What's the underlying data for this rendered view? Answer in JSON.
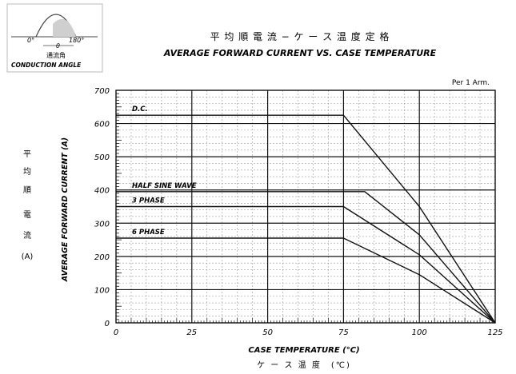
{
  "chart_data": {
    "type": "line",
    "title_jp": "平 均 順 電 流 − ケ ー ス 温 度 定 格",
    "title": "AVERAGE FORWARD CURRENT VS. CASE TEMPERATURE",
    "note": "Per 1 Arm.",
    "xlabel": "CASE TEMPERATURE (°C)",
    "xlabel_jp": "ケ ー ス 温 度　(℃)",
    "ylabel": "AVERAGE FORWARD CURRENT (A)",
    "ylabel_jp": [
      "平",
      "均",
      "順",
      "電",
      "流",
      "(A)"
    ],
    "xlim": [
      0,
      125
    ],
    "ylim": [
      0,
      700
    ],
    "x_ticks": [
      0,
      25,
      50,
      75,
      100,
      125
    ],
    "y_ticks": [
      0,
      100,
      200,
      300,
      400,
      500,
      600,
      700
    ],
    "grid": true,
    "series": [
      {
        "name": "D.C.",
        "points": [
          [
            0,
            625
          ],
          [
            75,
            625
          ],
          [
            100,
            350
          ],
          [
            125,
            0
          ]
        ]
      },
      {
        "name": "HALF SINE WAVE",
        "points": [
          [
            0,
            395
          ],
          [
            82,
            395
          ],
          [
            100,
            265
          ],
          [
            125,
            0
          ]
        ]
      },
      {
        "name": "3 PHASE",
        "points": [
          [
            0,
            350
          ],
          [
            75,
            350
          ],
          [
            100,
            205
          ],
          [
            125,
            0
          ]
        ]
      },
      {
        "name": "6 PHASE",
        "points": [
          [
            0,
            255
          ],
          [
            75,
            255
          ],
          [
            100,
            145
          ],
          [
            125,
            0
          ]
        ]
      }
    ],
    "inset": {
      "labels": [
        "0°",
        "θ",
        "180°"
      ],
      "caption_jp": "通流角",
      "caption": "CONDUCTION ANGLE"
    }
  }
}
